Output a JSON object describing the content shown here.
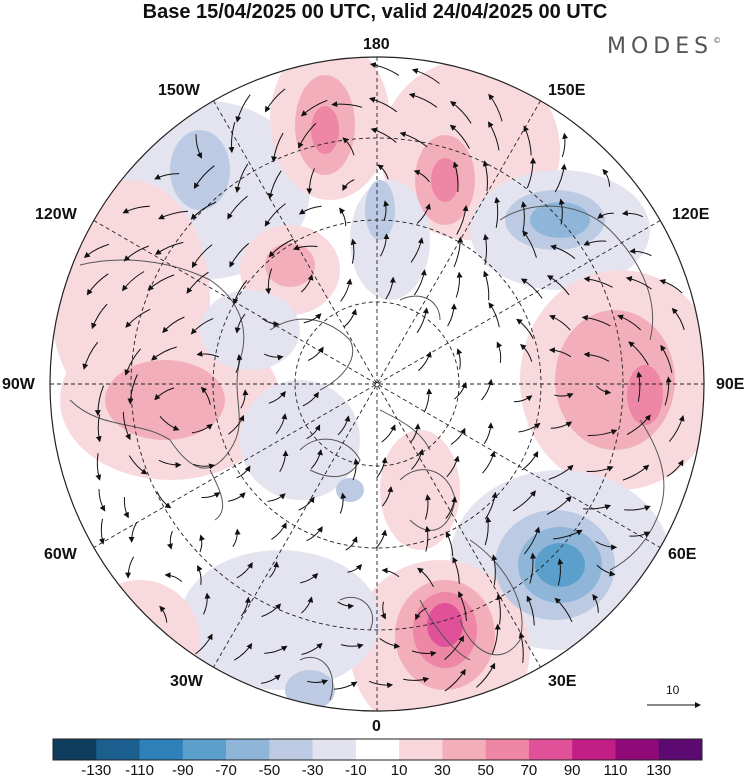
{
  "title": "Base 15/04/2025 00 UTC, valid 24/04/2025 00 UTC",
  "brand": "MODES",
  "brand_mark": "©",
  "longitude_labels": {
    "lon_180": "180",
    "lon_150w": "150W",
    "lon_150e": "150E",
    "lon_120w": "120W",
    "lon_120e": "120E",
    "lon_90w": "90W",
    "lon_90e": "90E",
    "lon_60w": "60W",
    "lon_60e": "60E",
    "lon_30w": "30W",
    "lon_30e": "30E",
    "lon_0": "0"
  },
  "vector_scale_label": "10",
  "colorbar": {
    "ticks": [
      "-130",
      "-110",
      "-90",
      "-70",
      "-50",
      "-30",
      "-10",
      "10",
      "30",
      "50",
      "70",
      "90",
      "110",
      "130"
    ],
    "colors": [
      "#0f3d5e",
      "#1a5f8e",
      "#2f80b8",
      "#5b9fcc",
      "#8fb6d9",
      "#bccbe3",
      "#e3e3f0",
      "#ffffff",
      "#f8d7dc",
      "#f3aebb",
      "#ee86a6",
      "#e0519a",
      "#c21e86",
      "#8f0a78",
      "#5c0a72"
    ]
  },
  "colors": {
    "land": "#555555",
    "grid": "#222222",
    "arrows": "#111111"
  }
}
